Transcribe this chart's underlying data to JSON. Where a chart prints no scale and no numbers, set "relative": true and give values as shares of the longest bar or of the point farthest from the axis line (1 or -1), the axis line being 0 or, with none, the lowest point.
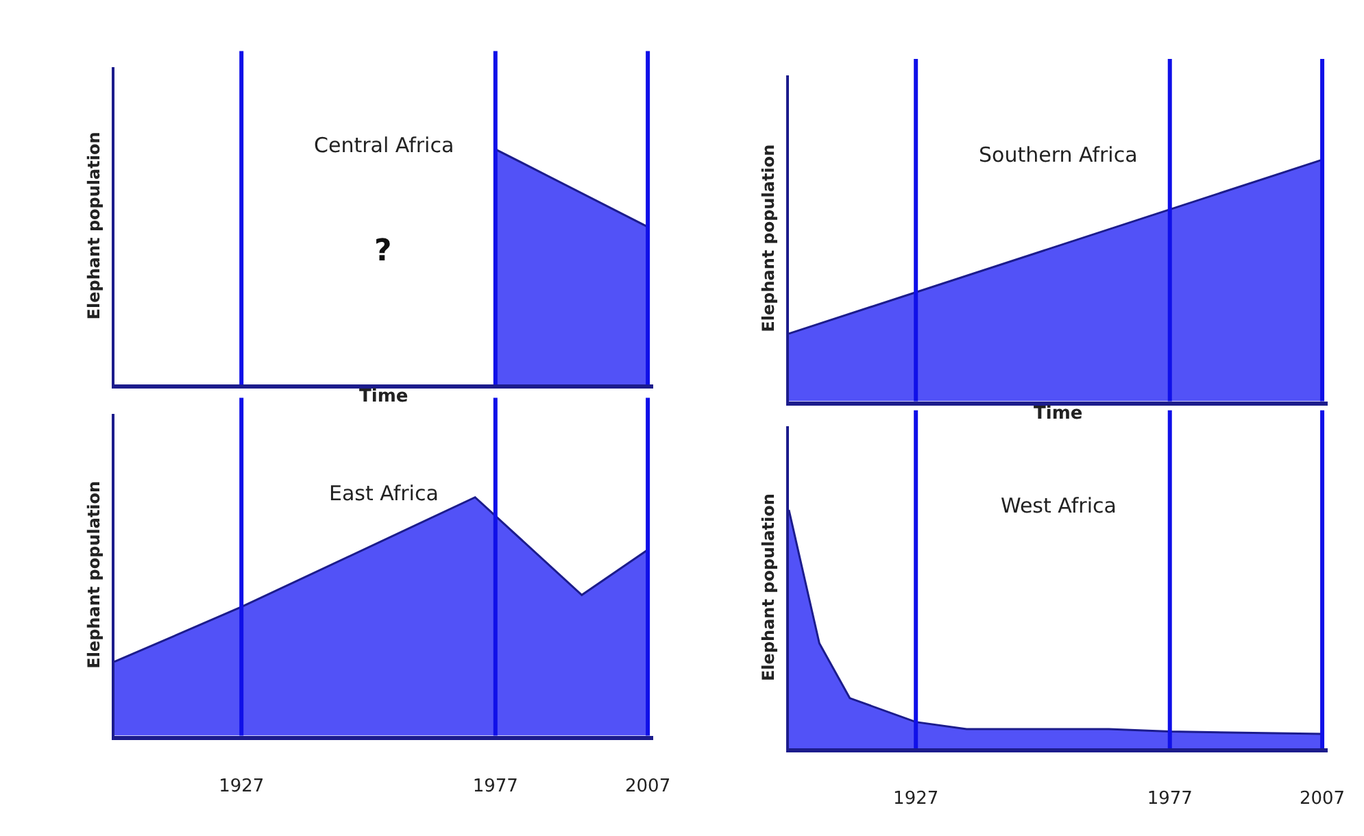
{
  "chart_data": [
    {
      "type": "area",
      "title": "Central Africa",
      "xlabel": "Time",
      "ylabel": "Elephant population",
      "relative": true,
      "tick_labels": false,
      "xlim": [
        1902,
        2008
      ],
      "x": [
        1977,
        2007
      ],
      "series": [
        {
          "color": "#5252f7",
          "values": [
            1,
            0.67
          ]
        }
      ],
      "ref_lines": [
        {
          "axis": "x",
          "value": 1927,
          "color": "#1010e8"
        },
        {
          "axis": "x",
          "value": 1977,
          "color": "#1010e8"
        },
        {
          "axis": "x",
          "value": 2007,
          "color": "#1010e8"
        }
      ],
      "annotations": [
        "?"
      ]
    },
    {
      "type": "area",
      "title": "Southern Africa",
      "xlabel": "Time",
      "ylabel": "Elephant population",
      "relative": true,
      "tick_labels": false,
      "xlim": [
        1902,
        2008
      ],
      "x": [
        1902,
        2007
      ],
      "series": [
        {
          "color": "#5252f7",
          "values": [
            0.28,
            1
          ]
        }
      ],
      "ref_lines": [
        {
          "axis": "x",
          "value": 1927,
          "color": "#1010e8"
        },
        {
          "axis": "x",
          "value": 1977,
          "color": "#1010e8"
        },
        {
          "axis": "x",
          "value": 2007,
          "color": "#1010e8"
        }
      ]
    },
    {
      "type": "area",
      "title": "East Africa",
      "ylabel": "Elephant population",
      "relative": true,
      "tick_labels": "x",
      "xlim": [
        1902,
        2008
      ],
      "xticks": [
        1927,
        1977,
        2007
      ],
      "x": [
        1902,
        1927,
        1973,
        1994,
        2007
      ],
      "series": [
        {
          "color": "#5252f7",
          "values": [
            0.31,
            0.54,
            1,
            0.59,
            0.78
          ]
        }
      ],
      "ref_lines": [
        {
          "axis": "x",
          "value": 1927,
          "color": "#1010e8"
        },
        {
          "axis": "x",
          "value": 1977,
          "color": "#1010e8"
        },
        {
          "axis": "x",
          "value": 2007,
          "color": "#1010e8"
        }
      ]
    },
    {
      "type": "area",
      "title": "West Africa",
      "ylabel": "Elephant population",
      "relative": true,
      "tick_labels": "x",
      "xlim": [
        1902,
        2008
      ],
      "xticks": [
        1927,
        1977,
        2007
      ],
      "x": [
        1902,
        1908,
        1914,
        1927,
        1937,
        1965,
        1977,
        2007
      ],
      "series": [
        {
          "color": "#5252f7",
          "values": [
            1,
            0.44,
            0.21,
            0.11,
            0.08,
            0.08,
            0.07,
            0.06
          ]
        }
      ],
      "ref_lines": [
        {
          "axis": "x",
          "value": 1927,
          "color": "#1010e8"
        },
        {
          "axis": "x",
          "value": 1977,
          "color": "#1010e8"
        },
        {
          "axis": "x",
          "value": 2007,
          "color": "#1010e8"
        }
      ]
    }
  ]
}
